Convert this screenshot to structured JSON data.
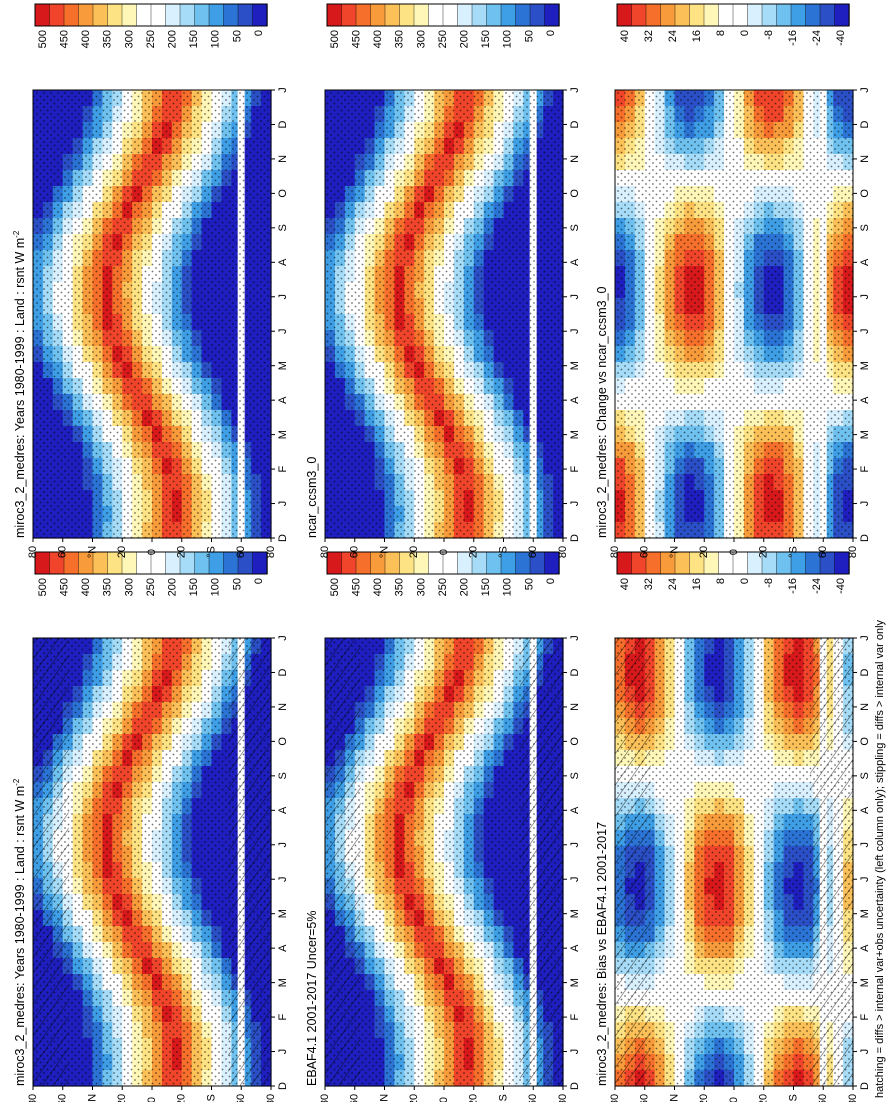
{
  "footnote": "hatching = diffs > internal var+obs uncertainty (left column only); stippling = diffs > internal var only",
  "months": [
    "D",
    "J",
    "F",
    "M",
    "A",
    "M",
    "J",
    "J",
    "A",
    "S",
    "O",
    "N",
    "D",
    "J"
  ],
  "lat_ticks": [
    "80",
    "60",
    "°N",
    "20",
    "0",
    "20",
    "°S",
    "60",
    "80"
  ],
  "abs_scale": {
    "labels": [
      "500",
      "450",
      "400",
      "350",
      "300",
      "250",
      "200",
      "150",
      "100",
      "50",
      "0"
    ],
    "colors": [
      "#d7191c",
      "#f0452a",
      "#f6702b",
      "#f89b3a",
      "#fbc057",
      "#fde383",
      "#fff7b8",
      "#ffffff",
      "#ffffff",
      "#d9f0ff",
      "#a6dcf7",
      "#6fc2ef",
      "#3f9fe6",
      "#2b74d6",
      "#2a4fc6",
      "#1f1fbf"
    ]
  },
  "diff_scale": {
    "labels": [
      "40",
      "32",
      "24",
      "16",
      "8",
      "0",
      "-8",
      "-16",
      "-24",
      "-40"
    ],
    "colors": [
      "#d7191c",
      "#f0452a",
      "#f6702b",
      "#f89b3a",
      "#fbc057",
      "#fde383",
      "#fff7b8",
      "#ffffff",
      "#ffffff",
      "#d9f0ff",
      "#a6dcf7",
      "#6fc2ef",
      "#3f9fe6",
      "#2b74d6",
      "#2a4fc6",
      "#1f1fbf"
    ]
  },
  "chart_data": [
    {
      "type": "heatmap",
      "position": "top-left",
      "title": "miroc3_2_medres: Years 1980-1999 : Land : rsnt W m",
      "title_sup": "-2",
      "x": "month (Dec-Jan cycle)",
      "y": "latitude",
      "colorbar": "abs_scale",
      "overlay": "hatching+stippling",
      "units": "W m-2"
    },
    {
      "type": "heatmap",
      "position": "top-right",
      "title": "miroc3_2_medres: Years 1980-1999 : Land : rsnt W m",
      "title_sup": "-2",
      "x": "month (Dec-Jan cycle)",
      "y": "latitude",
      "colorbar": "abs_scale",
      "overlay": "stippling",
      "units": "W m-2"
    },
    {
      "type": "heatmap",
      "position": "middle-left",
      "title": "EBAF4.1 2001-2017 Uncer=5%",
      "title_sup": "",
      "x": "month (Dec-Jan cycle)",
      "y": "latitude",
      "colorbar": "abs_scale",
      "overlay": "hatching+stippling",
      "units": "W m-2"
    },
    {
      "type": "heatmap",
      "position": "middle-right",
      "title": "ncar_ccsm3_0",
      "title_sup": "",
      "x": "month (Dec-Jan cycle)",
      "y": "latitude",
      "colorbar": "abs_scale",
      "overlay": "stippling",
      "units": "W m-2"
    },
    {
      "type": "heatmap",
      "position": "bottom-left",
      "title": "miroc3_2_medres: Bias vs EBAF4.1 2001-2017",
      "title_sup": "",
      "x": "month (Dec-Jan cycle)",
      "y": "latitude",
      "colorbar": "diff_scale",
      "overlay": "hatching+stippling",
      "units": "W m-2"
    },
    {
      "type": "heatmap",
      "position": "bottom-right",
      "title": "miroc3_2_medres: Change vs ncar_ccsm3_0",
      "title_sup": "",
      "x": "month (Dec-Jan cycle)",
      "y": "latitude",
      "colorbar": "diff_scale",
      "overlay": "stippling",
      "units": "W m-2"
    }
  ]
}
